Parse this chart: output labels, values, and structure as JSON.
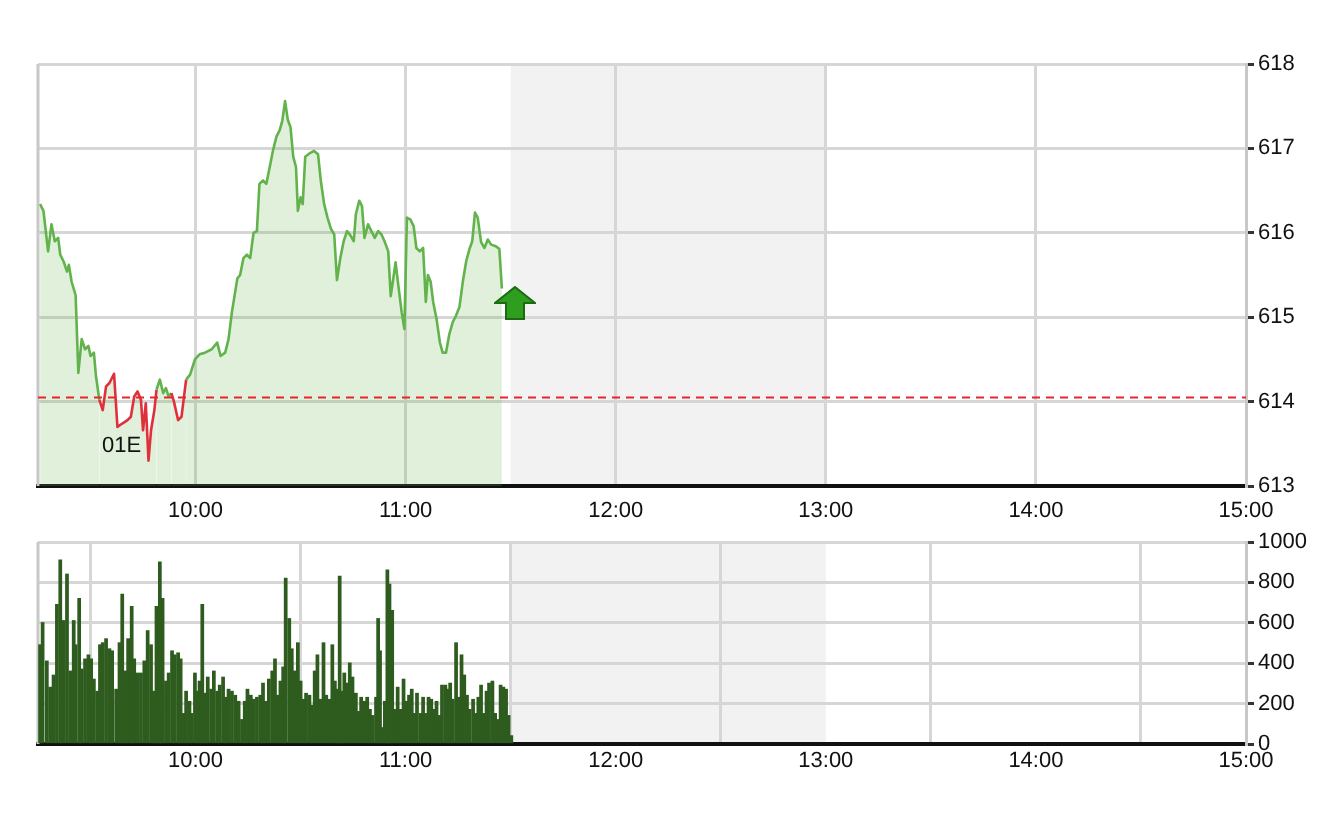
{
  "chart_data": [
    {
      "type": "area",
      "color": "#62b34c",
      "x": [
        9.26,
        9.276,
        9.298,
        9.314,
        9.33,
        9.346,
        9.356,
        9.372,
        9.388,
        9.397,
        9.41,
        9.429,
        9.442,
        9.458,
        9.474,
        9.49,
        9.5,
        9.516,
        9.526,
        9.542,
        9.558,
        9.574,
        9.59,
        9.612,
        9.628,
        9.651,
        9.676,
        9.692,
        9.708,
        9.724,
        9.74,
        9.75,
        9.763,
        9.776,
        9.788,
        9.804,
        9.814,
        9.83,
        9.846,
        9.859,
        9.872,
        9.885,
        9.897,
        9.917,
        9.933,
        9.942,
        9.955,
        9.974,
        9.997,
        10.019,
        10.045,
        10.077,
        10.103,
        10.119,
        10.141,
        10.157,
        10.173,
        10.199,
        10.212,
        10.228,
        10.244,
        10.26,
        10.276,
        10.292,
        10.304,
        10.321,
        10.337,
        10.353,
        10.369,
        10.385,
        10.401,
        10.413,
        10.426,
        10.439,
        10.452,
        10.465,
        10.478,
        10.487,
        10.5,
        10.51,
        10.522,
        10.542,
        10.564,
        10.583,
        10.596,
        10.612,
        10.628,
        10.644,
        10.66,
        10.673,
        10.689,
        10.705,
        10.721,
        10.737,
        10.753,
        10.763,
        10.779,
        10.792,
        10.804,
        10.821,
        10.837,
        10.853,
        10.869,
        10.885,
        10.901,
        10.917,
        10.929,
        10.939,
        10.952,
        10.965,
        10.981,
        10.994,
        11.006,
        11.022,
        11.038,
        11.051,
        11.067,
        11.083,
        11.096,
        11.106,
        11.119,
        11.131,
        11.147,
        11.163,
        11.176,
        11.192,
        11.208,
        11.224,
        11.24,
        11.256,
        11.272,
        11.288,
        11.304,
        11.317,
        11.33,
        11.343,
        11.359,
        11.375,
        11.391,
        11.407,
        11.429,
        11.446,
        11.458
      ],
      "values": [
        616.34,
        616.26,
        615.78,
        616.1,
        615.9,
        615.94,
        615.74,
        615.66,
        615.54,
        615.62,
        615.42,
        615.26,
        614.34,
        614.74,
        614.62,
        614.66,
        614.54,
        614.58,
        614.3,
        614.02,
        613.9,
        614.18,
        614.22,
        614.33,
        613.7,
        613.74,
        613.78,
        613.82,
        614.06,
        614.12,
        614.02,
        613.66,
        613.98,
        613.3,
        613.66,
        613.9,
        614.14,
        614.26,
        614.1,
        614.16,
        614.06,
        614.1,
        614.0,
        613.78,
        613.82,
        614.0,
        614.26,
        614.32,
        614.5,
        614.56,
        614.58,
        614.62,
        614.7,
        614.54,
        614.58,
        614.74,
        615.06,
        615.46,
        615.5,
        615.7,
        615.74,
        615.7,
        616.0,
        616.02,
        616.58,
        616.62,
        616.58,
        616.78,
        616.98,
        617.14,
        617.22,
        617.33,
        617.56,
        617.34,
        617.25,
        616.9,
        616.78,
        616.26,
        616.42,
        616.34,
        616.9,
        616.94,
        616.97,
        616.93,
        616.62,
        616.34,
        616.18,
        616.05,
        615.98,
        615.44,
        615.7,
        615.9,
        616.02,
        615.97,
        615.9,
        616.22,
        616.38,
        616.32,
        615.94,
        616.1,
        616.02,
        615.94,
        616.02,
        615.98,
        615.89,
        615.78,
        615.25,
        615.42,
        615.65,
        615.38,
        615.06,
        614.86,
        616.18,
        616.16,
        616.08,
        615.82,
        615.78,
        615.82,
        615.18,
        615.5,
        615.42,
        615.18,
        614.98,
        614.7,
        614.58,
        614.58,
        614.8,
        614.94,
        615.02,
        615.12,
        615.42,
        615.66,
        615.81,
        615.9,
        616.24,
        616.18,
        615.89,
        615.82,
        615.92,
        615.86,
        615.84,
        615.81,
        615.34
      ],
      "colors": [
        "#62b34c",
        "#62b34c",
        "#62b34c",
        "#62b34c",
        "#62b34c",
        "#62b34c",
        "#62b34c",
        "#62b34c",
        "#62b34c",
        "#62b34c",
        "#62b34c",
        "#62b34c",
        "#62b34c",
        "#62b34c",
        "#62b34c",
        "#62b34c",
        "#62b34c",
        "#62b34c",
        "#62b34c",
        "#62b34c",
        "#e0303c",
        "#e0303c",
        "#e0303c",
        "#e0303c",
        "#e0303c",
        "#e0303c",
        "#e0303c",
        "#e0303c",
        "#e0303c",
        "#e0303c",
        "#e0303c",
        "#e0303c",
        "#e0303c",
        "#e0303c",
        "#e0303c",
        "#e0303c",
        "#62b34c",
        "#62b34c",
        "#62b34c",
        "#62b34c",
        "#62b34c",
        "#62b34c",
        "#e0303c",
        "#e0303c",
        "#e0303c",
        "#e0303c",
        "#62b34c",
        "#62b34c",
        "#62b34c",
        "#62b34c",
        "#62b34c",
        "#62b34c",
        "#62b34c",
        "#62b34c",
        "#62b34c",
        "#62b34c",
        "#62b34c",
        "#62b34c",
        "#62b34c",
        "#62b34c",
        "#62b34c",
        "#62b34c",
        "#62b34c",
        "#62b34c",
        "#62b34c",
        "#62b34c",
        "#62b34c",
        "#62b34c",
        "#62b34c",
        "#62b34c",
        "#62b34c",
        "#62b34c",
        "#62b34c",
        "#62b34c",
        "#62b34c",
        "#62b34c",
        "#62b34c",
        "#62b34c",
        "#62b34c",
        "#62b34c",
        "#62b34c",
        "#62b34c",
        "#62b34c",
        "#62b34c",
        "#62b34c",
        "#62b34c",
        "#62b34c",
        "#62b34c",
        "#62b34c",
        "#62b34c",
        "#62b34c",
        "#62b34c",
        "#62b34c",
        "#62b34c",
        "#62b34c",
        "#62b34c",
        "#62b34c",
        "#62b34c",
        "#62b34c",
        "#62b34c",
        "#62b34c",
        "#62b34c",
        "#62b34c",
        "#62b34c",
        "#62b34c",
        "#62b34c",
        "#62b34c",
        "#62b34c",
        "#62b34c",
        "#62b34c",
        "#62b34c",
        "#62b34c",
        "#62b34c",
        "#62b34c",
        "#62b34c",
        "#62b34c",
        "#62b34c",
        "#62b34c",
        "#62b34c",
        "#62b34c",
        "#62b34c",
        "#62b34c",
        "#62b34c",
        "#62b34c",
        "#62b34c",
        "#62b34c",
        "#62b34c",
        "#62b34c",
        "#62b34c",
        "#62b34c",
        "#62b34c",
        "#62b34c",
        "#62b34c",
        "#62b34c",
        "#62b34c",
        "#62b34c",
        "#62b34c",
        "#62b34c",
        "#62b34c",
        "#62b34c",
        "#62b34c",
        "#62b34c",
        "#62b34c"
      ],
      "xlim": [
        9.25,
        15
      ],
      "xticks": [
        {
          "value": 10,
          "label": "10:00"
        },
        {
          "value": 11,
          "label": "11:00"
        },
        {
          "value": 12,
          "label": "12:00"
        },
        {
          "value": 13,
          "label": "13:00"
        },
        {
          "value": 14,
          "label": "14:00"
        },
        {
          "value": 15,
          "label": "15:00"
        }
      ],
      "ylim": [
        613,
        618
      ],
      "yticks": [
        613,
        614,
        615,
        616,
        617,
        618
      ],
      "grid": true,
      "legend": false,
      "ref_lines": [
        {
          "axis": "y",
          "value": 614.05,
          "color": "#e8262a",
          "line_style": "dashed"
        }
      ],
      "bands": [
        {
          "axis": "x",
          "from": 11.5,
          "to": 13,
          "color": "#f2f2f2"
        }
      ],
      "annotations": [
        "01E"
      ]
    },
    {
      "type": "bar",
      "color": "#2e5c1e",
      "x": [
        9.26,
        9.272,
        9.292,
        9.308,
        9.324,
        9.34,
        9.356,
        9.372,
        9.388,
        9.404,
        9.42,
        9.429,
        9.446,
        9.458,
        9.474,
        9.49,
        9.503,
        9.516,
        9.532,
        9.545,
        9.558,
        9.574,
        9.59,
        9.603,
        9.622,
        9.638,
        9.651,
        9.667,
        9.679,
        9.696,
        9.708,
        9.724,
        9.74,
        9.756,
        9.772,
        9.788,
        9.801,
        9.814,
        9.83,
        9.843,
        9.859,
        9.872,
        9.888,
        9.901,
        9.917,
        9.929,
        9.942,
        9.955,
        9.971,
        9.981,
        9.997,
        10.006,
        10.019,
        10.032,
        10.045,
        10.058,
        10.074,
        10.087,
        10.103,
        10.115,
        10.131,
        10.144,
        10.157,
        10.173,
        10.189,
        10.205,
        10.221,
        10.234,
        10.247,
        10.263,
        10.276,
        10.292,
        10.308,
        10.321,
        10.333,
        10.349,
        10.365,
        10.378,
        10.391,
        10.404,
        10.417,
        10.429,
        10.446,
        10.458,
        10.471,
        10.487,
        10.5,
        10.513,
        10.526,
        10.542,
        10.554,
        10.567,
        10.58,
        10.596,
        10.609,
        10.622,
        10.638,
        10.651,
        10.663,
        10.673,
        10.686,
        10.696,
        10.708,
        10.721,
        10.734,
        10.747,
        10.763,
        10.776,
        10.788,
        10.804,
        10.817,
        10.83,
        10.843,
        10.859,
        10.869,
        10.878,
        10.891,
        10.901,
        10.913,
        10.923,
        10.936,
        10.949,
        10.962,
        10.974,
        10.99,
        11.003,
        11.016,
        11.029,
        11.042,
        11.054,
        11.071,
        11.083,
        11.096,
        11.109,
        11.122,
        11.135,
        11.147,
        11.16,
        11.173,
        11.189,
        11.199,
        11.212,
        11.224,
        11.24,
        11.253,
        11.266,
        11.279,
        11.292,
        11.304,
        11.321,
        11.333,
        11.346,
        11.359,
        11.372,
        11.385,
        11.397,
        11.413,
        11.426,
        11.439,
        11.452,
        11.465,
        11.478,
        11.49,
        11.503
      ],
      "values": [
        490,
        600,
        410,
        280,
        340,
        690,
        910,
        610,
        840,
        360,
        610,
        490,
        720,
        370,
        420,
        440,
        420,
        320,
        260,
        490,
        500,
        520,
        470,
        460,
        270,
        500,
        740,
        360,
        520,
        680,
        420,
        350,
        350,
        410,
        560,
        490,
        260,
        680,
        900,
        720,
        310,
        350,
        460,
        440,
        450,
        420,
        150,
        260,
        210,
        150,
        350,
        260,
        310,
        690,
        250,
        330,
        270,
        360,
        260,
        290,
        330,
        230,
        270,
        260,
        240,
        210,
        120,
        210,
        270,
        240,
        220,
        230,
        240,
        300,
        210,
        320,
        360,
        420,
        240,
        310,
        380,
        820,
        620,
        470,
        360,
        500,
        310,
        220,
        250,
        240,
        190,
        360,
        440,
        220,
        500,
        240,
        220,
        490,
        310,
        270,
        830,
        260,
        350,
        300,
        400,
        330,
        250,
        160,
        230,
        210,
        230,
        170,
        140,
        230,
        620,
        460,
        80,
        210,
        860,
        790,
        660,
        170,
        280,
        170,
        320,
        210,
        240,
        270,
        150,
        250,
        150,
        230,
        150,
        230,
        220,
        170,
        210,
        140,
        290,
        290,
        270,
        300,
        220,
        500,
        230,
        440,
        340,
        240,
        170,
        220,
        150,
        230,
        290,
        150,
        260,
        300,
        310,
        150,
        120,
        290,
        280,
        270,
        140,
        40
      ],
      "xlim": [
        9.25,
        15
      ],
      "xticks": [
        {
          "value": 10,
          "label": "10:00"
        },
        {
          "value": 11,
          "label": "11:00"
        },
        {
          "value": 12,
          "label": "12:00"
        },
        {
          "value": 13,
          "label": "13:00"
        },
        {
          "value": 14,
          "label": "14:00"
        },
        {
          "value": 15,
          "label": "15:00"
        }
      ],
      "ylim": [
        0,
        1000
      ],
      "yticks": [
        0,
        200,
        400,
        600,
        800,
        1000
      ],
      "grid": true,
      "legend": false,
      "bands": [
        {
          "axis": "x",
          "from": 11.5,
          "to": 13,
          "color": "#f2f2f2"
        }
      ]
    }
  ]
}
